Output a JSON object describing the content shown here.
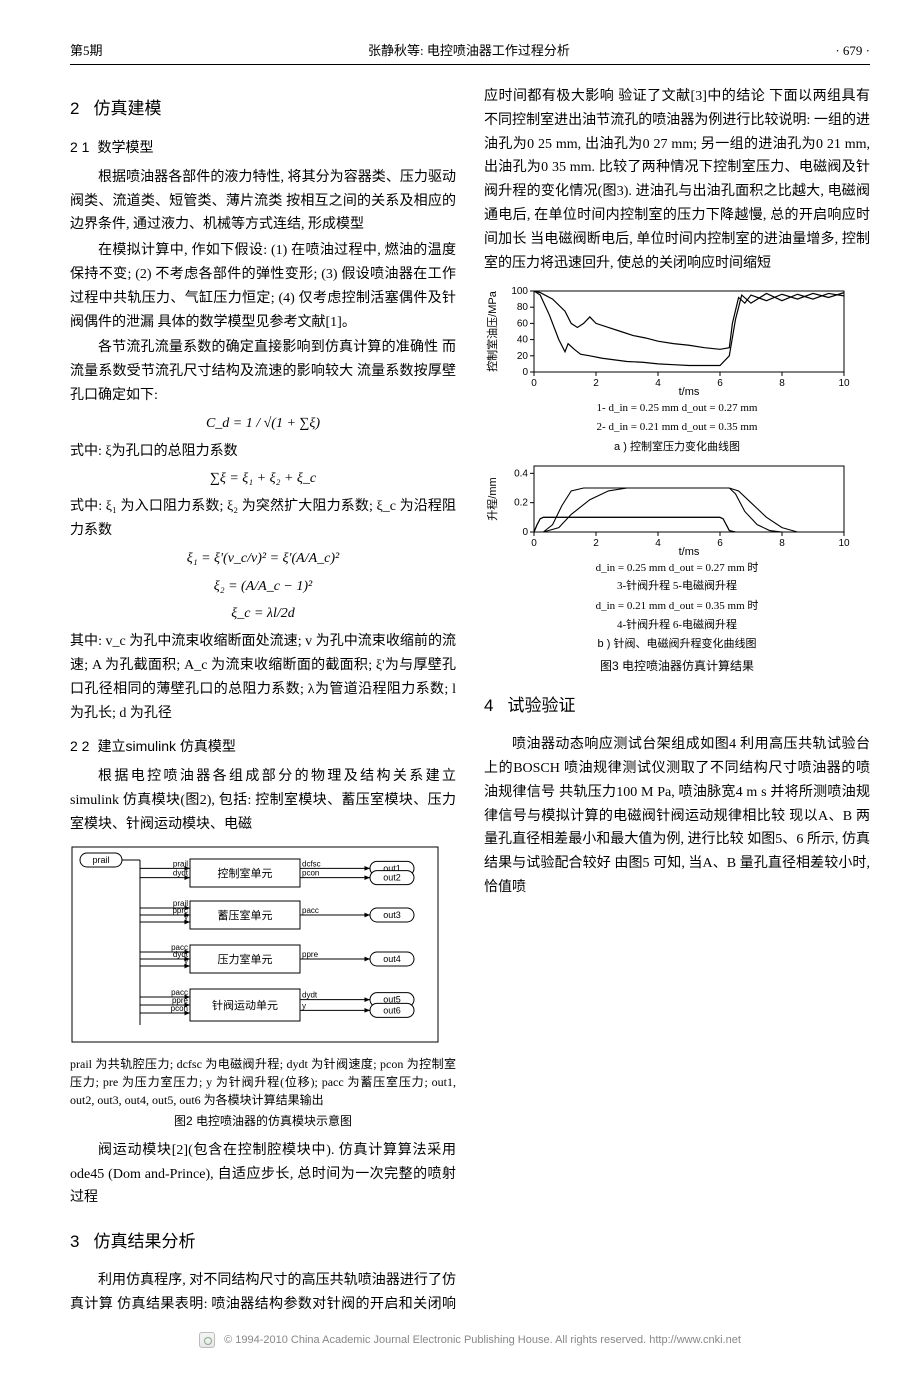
{
  "header": {
    "left": "第5期",
    "center": "张静秋等: 电控喷油器工作过程分析",
    "right": "· 679 ·"
  },
  "sec2": {
    "title": "仿真建模",
    "sub1_title": "数学模型",
    "p1": "根据喷油器各部件的液力特性, 将其分为容器类、压力驱动阀类、流道类、短管类、薄片流类 按相互之间的关系及相应的边界条件, 通过液力、机械等方式连结, 形成模型",
    "p2": "在模拟计算中, 作如下假设: (1) 在喷油过程中, 燃油的温度保持不变; (2) 不考虑各部件的弹性变形; (3) 假设喷油器在工作过程中共轨压力、气缸压力恒定; (4) 仅考虑控制活塞偶件及针阀偶件的泄漏 具体的数学模型见参考文献[1]。",
    "p3": "各节流孔流量系数的确定直接影响到仿真计算的准确性 而流量系数受节流孔尺寸结构及流速的影响较大 流量系数按厚壁孔口确定如下:",
    "f1": "C_d = 1 / √(1 + ∑ξ)",
    "p4": "式中: ξ为孔口的总阻力系数",
    "f2": "∑ξ = ξ₁ + ξ₂ + ξ_c",
    "p5": "式中: ξ₁ 为入口阻力系数; ξ₂ 为突然扩大阻力系数; ξ_c 为沿程阻力系数",
    "f3": "ξ₁ = ξ'(v_c/v)² = ξ'(A/A_c)²",
    "f4": "ξ₂ = (A/A_c − 1)²",
    "f5": "ξ_c = λl/2d",
    "p6": "其中: v_c 为孔中流束收缩断面处流速; v 为孔中流束收缩前的流速; A 为孔截面积; A_c 为流束收缩断面的截面积; ξ'为与厚壁孔口孔径相同的薄壁孔口的总阻力系数; λ为管道沿程阻力系数; l 为孔长; d 为孔径",
    "sub2_title": "建立simulink 仿真模型",
    "p7": "根据电控喷油器各组成部分的物理及结构关系建立 simulink 仿真模块(图2), 包括: 控制室模块、蓄压室模块、压力室模块、针阀运动模块、电磁"
  },
  "fig2": {
    "blocks": {
      "ctrl": "控制室单元",
      "acc": "蓄压室单元",
      "press": "压力室单元",
      "needle": "针阀运动单元"
    },
    "labels": {
      "prail": "prail",
      "dcfsc": "dcfsc",
      "pcon": "pcon",
      "dydt": "dydt",
      "pacc": "pacc",
      "pprc": "pprc",
      "ppre": "ppre",
      "y": "y",
      "out1": "out1",
      "out2": "out2",
      "out3": "out3",
      "out4": "out4",
      "out5": "out5",
      "out6": "out6"
    },
    "desc": "prail 为共轨腔压力; dcfsc 为电磁阀升程; dydt 为针阀速度; pcon 为控制室压力; pre 为压力室压力; y 为针阀升程(位移); pacc 为蓄压室压力; out1, out2, out3, out4, out5, out6 为各模块计算结果输出",
    "caption": "图2  电控喷油器的仿真模块示意图",
    "style": {
      "block_fill": "#ffffff",
      "block_stroke": "#000000",
      "line_color": "#000000",
      "text_size": 10
    }
  },
  "col2_top": {
    "p1": "阀运动模块[2](包含在控制腔模块中).        仿真计算算法采用ode45 (Dom and-Prince), 自适应步长, 总时间为一次完整的喷射过程"
  },
  "sec3": {
    "title": "仿真结果分析",
    "p1": "利用仿真程序, 对不同结构尺寸的高压共轨喷油器进行了仿真计算 仿真结果表明: 喷油器结构参数对针阀的开启和关闭响应时间都有极大影响 验证了文献[3]中的结论 下面以两组具有不同控制室进出油节流孔的喷油器为例进行比较说明: 一组的进油孔为0 25 mm, 出油孔为0 27 mm; 另一组的进油孔为0 21 mm, 出油孔为0 35 mm. 比较了两种情况下控制室压力、电磁阀及针阀升程的变化情况(图3). 进油孔与出油孔面积之比越大, 电磁阀通电后, 在单位时间内控制室的压力下降越慢, 总的开启响应时间加长 当电磁阀断电后, 单位时间内控制室的进油量增多, 控制室的压力将迅速回升, 使总的关闭响应时间缩短"
  },
  "fig3": {
    "chart_a": {
      "type": "line",
      "xlabel": "t/ms",
      "ylabel": "控制室油压/MPa",
      "xlim": [
        0,
        10
      ],
      "xticks": [
        0,
        2,
        4,
        6,
        8,
        10
      ],
      "ylim": [
        0,
        100
      ],
      "yticks": [
        0,
        20,
        40,
        60,
        80,
        100
      ],
      "bg": "#ffffff",
      "axis_color": "#000000",
      "grid": false,
      "series": [
        {
          "name": "1",
          "color": "#000000",
          "width": 1.2,
          "x": [
            0,
            0.2,
            0.6,
            1.0,
            1.2,
            1.4,
            1.6,
            1.8,
            2.0,
            2.4,
            2.8,
            3.2,
            3.6,
            4.0,
            4.5,
            5.0,
            5.5,
            6.0,
            6.3,
            6.4,
            6.6,
            6.8,
            7.0,
            7.5,
            8.0,
            8.5,
            9.0,
            9.5,
            10.0
          ],
          "y": [
            100,
            98,
            90,
            75,
            60,
            55,
            60,
            68,
            60,
            55,
            50,
            45,
            42,
            38,
            35,
            33,
            30,
            28,
            30,
            60,
            92,
            85,
            95,
            88,
            96,
            90,
            97,
            92,
            98
          ]
        },
        {
          "name": "2",
          "color": "#000000",
          "width": 1.2,
          "x": [
            0,
            0.2,
            0.5,
            0.8,
            1.0,
            1.1,
            1.3,
            1.5,
            1.8,
            2.2,
            2.6,
            3.0,
            3.5,
            4.0,
            4.5,
            5.0,
            5.5,
            6.0,
            6.3,
            6.5,
            6.7,
            7.0,
            7.5,
            8.0,
            8.5,
            9.0,
            9.5,
            10.0
          ],
          "y": [
            100,
            95,
            70,
            40,
            25,
            35,
            28,
            22,
            20,
            17,
            15,
            13,
            12,
            10,
            9,
            8,
            8,
            8,
            20,
            65,
            95,
            85,
            97,
            88,
            96,
            90,
            97,
            94
          ]
        }
      ],
      "legend": "1- d_in = 0.25 mm   d_out = 0.27 mm\n2- d_in = 0.21 mm   d_out = 0.35 mm",
      "subcaption": "a ) 控制室压力变化曲线图"
    },
    "chart_b": {
      "type": "line",
      "xlabel": "t/ms",
      "ylabel": "升程/mm",
      "xlim": [
        0,
        10
      ],
      "xticks": [
        0,
        2,
        4,
        6,
        8,
        10
      ],
      "ylim": [
        0,
        0.45
      ],
      "yticks": [
        0,
        0.2,
        0.4
      ],
      "bg": "#ffffff",
      "axis_color": "#000000",
      "series": [
        {
          "name": "3",
          "color": "#000000",
          "width": 1.1,
          "x": [
            0,
            0.3,
            0.8,
            1.2,
            1.8,
            2.4,
            3.0,
            4.0,
            5.0,
            6.0,
            6.3,
            6.5,
            6.8,
            7.2,
            7.6,
            8.0,
            10.0
          ],
          "y": [
            0,
            0,
            0.03,
            0.12,
            0.22,
            0.28,
            0.3,
            0.3,
            0.3,
            0.3,
            0.3,
            0.26,
            0.14,
            0.05,
            0.01,
            0,
            0
          ]
        },
        {
          "name": "4",
          "color": "#000000",
          "width": 1.1,
          "x": [
            0,
            0.3,
            0.6,
            0.9,
            1.2,
            1.6,
            2.0,
            4.0,
            6.0,
            6.3,
            6.6,
            7.0,
            7.5,
            8.0,
            8.5,
            10.0
          ],
          "y": [
            0,
            0,
            0.05,
            0.18,
            0.28,
            0.3,
            0.3,
            0.3,
            0.3,
            0.3,
            0.28,
            0.2,
            0.1,
            0.03,
            0,
            0
          ]
        },
        {
          "name": "5",
          "color": "#000000",
          "width": 1.1,
          "x": [
            0,
            0.1,
            0.2,
            0.3,
            0.5,
            6.0,
            6.1,
            6.2,
            6.3,
            6.5,
            10.0
          ],
          "y": [
            0,
            0.05,
            0.09,
            0.1,
            0.1,
            0.1,
            0.09,
            0.05,
            0.01,
            0,
            0
          ]
        },
        {
          "name": "6",
          "color": "#000000",
          "width": 1.1,
          "x": [
            0,
            0.1,
            0.2,
            0.3,
            0.5,
            6.0,
            6.1,
            6.2,
            6.3,
            6.5,
            10.0
          ],
          "y": [
            0,
            0.05,
            0.09,
            0.1,
            0.1,
            0.1,
            0.09,
            0.05,
            0.01,
            0,
            0
          ]
        }
      ],
      "legend1": "d_in = 0.25 mm   d_out = 0.27 mm 时\n3-针阀升程   5-电磁阀升程",
      "legend2": "d_in = 0.21 mm   d_out = 0.35 mm 时\n4-针阀升程   6-电磁阀升程",
      "subcaption": "b ) 针阀、电磁阀升程变化曲线图"
    },
    "caption": "图3  电控喷油器仿真计算结果"
  },
  "sec4": {
    "title": "试验验证",
    "p1": "喷油器动态响应测试台架组成如图4 利用高压共轨试验台上的BOSCH 喷油规律测试仪测取了不同结构尺寸喷油器的喷油规律信号 共轨压力100 M Pa, 喷油脉宽4 m s 并将所测喷油规律信号与模拟计算的电磁阀针阀运动规律相比较 现以A、B 两量孔直径相差最小和最大值为例, 进行比较 如图5、6 所示, 仿真结果与试验配合较好 由图5 可知, 当A、B 量孔直径相差较小时, 恰值喷"
  },
  "footer": {
    "text": "© 1994-2010 China Academic Journal Electronic Publishing House. All rights reserved.   http://www.cnki.net"
  }
}
